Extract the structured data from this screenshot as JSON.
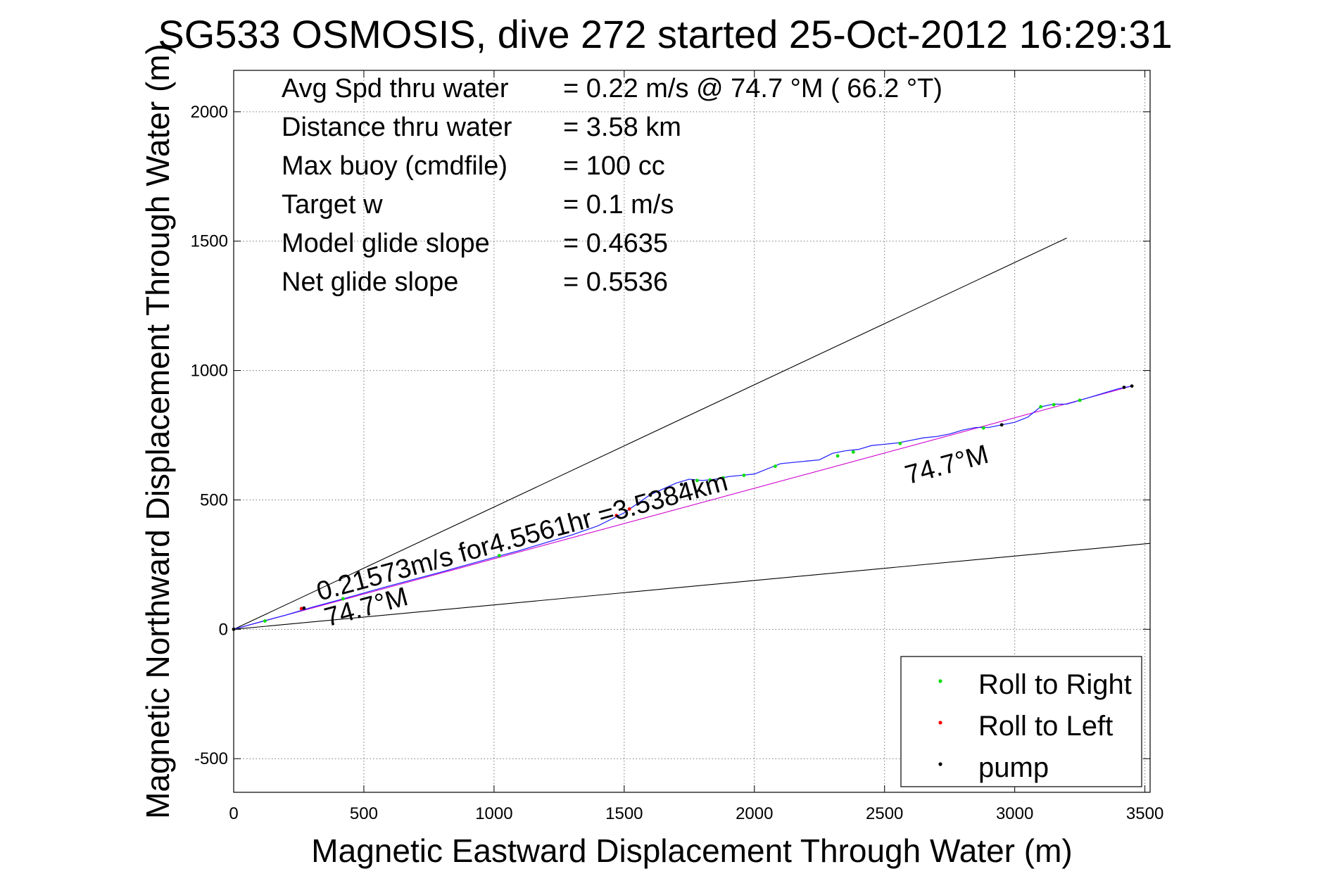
{
  "chart_data": {
    "type": "scatter",
    "title": "SG533 OSMOSIS, dive 272 started 25-Oct-2012 16:29:31",
    "xlabel": "Magnetic Eastward Displacement Through Water (m)",
    "ylabel": "Magnetic Northward Displacement Through Water (m)",
    "xlim": [
      0,
      3520
    ],
    "ylim": [
      -630,
      2160
    ],
    "xticks": [
      0,
      500,
      1000,
      1500,
      2000,
      2500,
      3000,
      3500
    ],
    "yticks": [
      -500,
      0,
      500,
      1000,
      1500,
      2000
    ],
    "grid": true,
    "stats": [
      {
        "label": "Avg Spd thru water",
        "value": "=  0.22 m/s @  74.7 °M ( 66.2 °T)"
      },
      {
        "label": "Distance thru water",
        "value": "=  3.58 km"
      },
      {
        "label": "Max buoy (cmdfile)",
        "value": "= 100 cc"
      },
      {
        "label": "Target w",
        "value": "= 0.1 m/s"
      },
      {
        "label": "Model glide slope",
        "value": "= 0.4635"
      },
      {
        "label": "Net glide slope",
        "value": "= 0.5536"
      }
    ],
    "reference_lines": [
      {
        "x": [
          0,
          3200
        ],
        "y": [
          0,
          1512
        ]
      },
      {
        "x": [
          0,
          3520
        ],
        "y": [
          0,
          332
        ]
      },
      {
        "x": [
          0,
          3450
        ],
        "y": [
          0,
          940
        ]
      }
    ],
    "annotations": [
      {
        "text": "0.21573m/s for4.5561hr =3.5384km",
        "x": 330,
        "y": 110,
        "angle": 15.2
      },
      {
        "text": "74.7°M",
        "x": 360,
        "y": 10,
        "angle": 15.2
      },
      {
        "text": "74.7°M",
        "x": 2590,
        "y": 560,
        "angle": 15.2
      }
    ],
    "track": {
      "x": [
        0,
        100,
        200,
        300,
        400,
        500,
        600,
        700,
        800,
        900,
        1000,
        1100,
        1200,
        1300,
        1400,
        1500,
        1600,
        1700,
        1750,
        1800,
        1850,
        1900,
        1950,
        2000,
        2050,
        2100,
        2150,
        2200,
        2250,
        2300,
        2350,
        2400,
        2450,
        2500,
        2550,
        2600,
        2650,
        2700,
        2750,
        2800,
        2850,
        2900,
        2950,
        3000,
        3050,
        3100,
        3150,
        3200,
        3250,
        3300,
        3350,
        3400,
        3450
      ],
      "y": [
        0,
        28,
        55,
        85,
        112,
        140,
        168,
        195,
        222,
        250,
        278,
        305,
        335,
        365,
        400,
        450,
        520,
        565,
        580,
        575,
        580,
        590,
        595,
        600,
        620,
        640,
        645,
        650,
        655,
        680,
        690,
        695,
        710,
        715,
        720,
        730,
        740,
        745,
        755,
        770,
        780,
        780,
        790,
        800,
        820,
        860,
        870,
        870,
        885,
        900,
        915,
        930,
        940
      ]
    },
    "series": [
      {
        "name": "Roll to Right",
        "color": "#00e000",
        "x": [
          120,
          420,
          1020,
          1780,
          1830,
          1880,
          1960,
          2080,
          2320,
          2380,
          2560,
          2880,
          3100,
          3150,
          3250
        ],
        "y": [
          32,
          118,
          285,
          575,
          577,
          585,
          595,
          630,
          670,
          685,
          718,
          778,
          860,
          868,
          885
        ]
      },
      {
        "name": "Roll to Left",
        "color": "#ff0000",
        "x": [
          260,
          1470,
          1520
        ],
        "y": [
          80,
          440,
          465
        ]
      },
      {
        "name": "pump",
        "color": "#000000",
        "x": [
          0,
          270,
          1600,
          1720,
          2950,
          3420,
          3450
        ],
        "y": [
          0,
          82,
          520,
          560,
          790,
          935,
          940
        ]
      }
    ],
    "legend": {
      "position": "bottom-right"
    }
  }
}
